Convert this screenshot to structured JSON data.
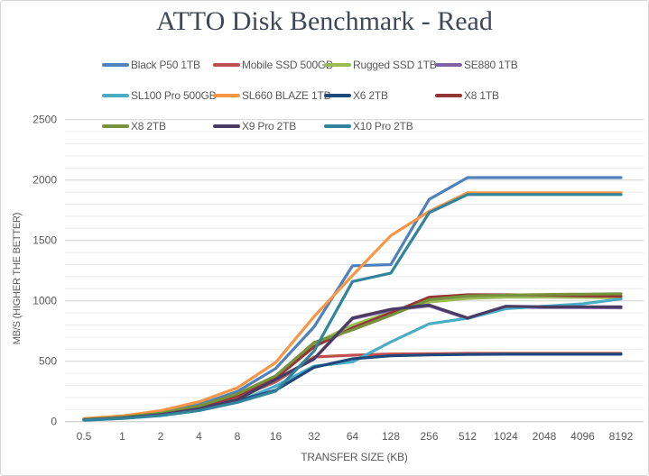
{
  "chart_data": {
    "type": "line",
    "title": "ATTO Disk Benchmark - Read",
    "xlabel": "TRANSFER SIZE (KB)",
    "ylabel": "MB/S (HIGHER THE BETTER)",
    "legend_position": "top",
    "grid": "horizontal, minor every 100, major every 500",
    "ylim": [
      0,
      2500
    ],
    "y_major_ticks": [
      0,
      500,
      1000,
      1500,
      2000,
      2500
    ],
    "categories": [
      "0.5",
      "1",
      "2",
      "4",
      "8",
      "16",
      "32",
      "64",
      "128",
      "256",
      "512",
      "1024",
      "2048",
      "4096",
      "8192"
    ],
    "series": [
      {
        "name": "Black P50 1TB",
        "color": "#4F81BD",
        "values": [
          20,
          40,
          75,
          140,
          250,
          440,
          785,
          1290,
          1300,
          1840,
          2020,
          2020,
          2020,
          2020,
          2020
        ]
      },
      {
        "name": "Mobile SSD 500GB",
        "color": "#C0504D",
        "values": [
          16,
          32,
          62,
          115,
          200,
          330,
          535,
          550,
          560,
          563,
          565,
          565,
          565,
          565,
          565
        ]
      },
      {
        "name": "Rugged SSD 1TB",
        "color": "#9BBB59",
        "values": [
          18,
          36,
          70,
          128,
          225,
          375,
          645,
          800,
          905,
          990,
          1020,
          1030,
          1030,
          1028,
          1025
        ]
      },
      {
        "name": "SE880 1TB",
        "color": "#8064A2",
        "values": [
          15,
          30,
          57,
          105,
          180,
          348,
          518,
          852,
          922,
          958,
          852,
          948,
          945,
          945,
          942
        ]
      },
      {
        "name": "SL100 Pro 500GB",
        "color": "#4BACC6",
        "values": [
          13,
          26,
          52,
          95,
          165,
          295,
          460,
          495,
          660,
          810,
          855,
          935,
          955,
          975,
          1015
        ]
      },
      {
        "name": "SL660 BLAZE 1TB",
        "color": "#F79646",
        "values": [
          25,
          48,
          90,
          165,
          280,
          490,
          870,
          1210,
          1540,
          1740,
          1895,
          1895,
          1895,
          1895,
          1895
        ]
      },
      {
        "name": "X6 2TB",
        "color": "#1F497D",
        "values": [
          14,
          28,
          55,
          100,
          172,
          260,
          450,
          520,
          545,
          552,
          556,
          558,
          558,
          558,
          558
        ]
      },
      {
        "name": "X8 1TB",
        "color": "#943634",
        "values": [
          17,
          34,
          66,
          122,
          215,
          360,
          620,
          775,
          900,
          1030,
          1050,
          1050,
          1048,
          1042,
          1038
        ]
      },
      {
        "name": "X8 2TB",
        "color": "#76923C",
        "values": [
          18,
          36,
          70,
          130,
          230,
          380,
          655,
          760,
          880,
          1010,
          1040,
          1048,
          1052,
          1055,
          1058
        ]
      },
      {
        "name": "X9 Pro 2TB",
        "color": "#4A3B63",
        "values": [
          15,
          30,
          58,
          107,
          182,
          350,
          522,
          858,
          930,
          965,
          858,
          955,
          950,
          950,
          950
        ]
      },
      {
        "name": "X10 Pro 2TB",
        "color": "#31849B",
        "values": [
          13,
          26,
          50,
          92,
          160,
          252,
          585,
          1160,
          1230,
          1730,
          1880,
          1880,
          1880,
          1880,
          1880
        ]
      }
    ]
  },
  "style": {
    "minor_grid_color": "#ececec",
    "major_grid_color": "#d2d2d2",
    "axis_line_color": "#c3c3c3",
    "tick_label_color": "#595959"
  }
}
